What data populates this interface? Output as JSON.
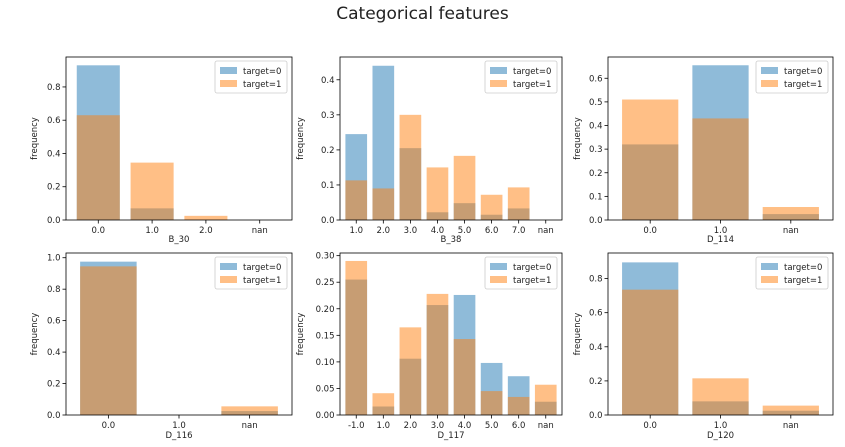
{
  "title": "Categorical features",
  "colors": {
    "target0": "#1f77b4",
    "target1": "#ff7f0e",
    "overlap": "#a87a5c"
  },
  "chart_data": [
    {
      "type": "bar",
      "xlabel": "B_30",
      "ylabel": "frequency",
      "categories": [
        "0.0",
        "1.0",
        "2.0",
        "nan"
      ],
      "ylim": [
        0,
        0.98
      ],
      "yticks": [
        0.0,
        0.2,
        0.4,
        0.6,
        0.8
      ],
      "legend": "upper right",
      "series": [
        {
          "name": "target=0",
          "values": [
            0.93,
            0.07,
            0.0,
            0.0
          ]
        },
        {
          "name": "target=1",
          "values": [
            0.63,
            0.345,
            0.025,
            0.0
          ]
        }
      ]
    },
    {
      "type": "bar",
      "xlabel": "B_38",
      "ylabel": "frequency",
      "categories": [
        "1.0",
        "2.0",
        "3.0",
        "4.0",
        "5.0",
        "6.0",
        "7.0",
        "nan"
      ],
      "ylim": [
        0,
        0.465
      ],
      "yticks": [
        0.0,
        0.1,
        0.2,
        0.3,
        0.4
      ],
      "legend": "upper right",
      "series": [
        {
          "name": "target=0",
          "values": [
            0.245,
            0.44,
            0.205,
            0.022,
            0.048,
            0.015,
            0.033,
            0.0
          ]
        },
        {
          "name": "target=1",
          "values": [
            0.113,
            0.09,
            0.3,
            0.15,
            0.183,
            0.072,
            0.093,
            0.0
          ]
        }
      ]
    },
    {
      "type": "bar",
      "xlabel": "D_114",
      "ylabel": "frequency",
      "categories": [
        "0.0",
        "1.0",
        "nan"
      ],
      "ylim": [
        0,
        0.69
      ],
      "yticks": [
        0.0,
        0.1,
        0.2,
        0.3,
        0.4,
        0.5,
        0.6
      ],
      "legend": "upper right",
      "series": [
        {
          "name": "target=0",
          "values": [
            0.32,
            0.655,
            0.025
          ]
        },
        {
          "name": "target=1",
          "values": [
            0.51,
            0.43,
            0.055
          ]
        }
      ]
    },
    {
      "type": "bar",
      "xlabel": "D_116",
      "ylabel": "frequency",
      "categories": [
        "0.0",
        "1.0",
        "nan"
      ],
      "ylim": [
        0,
        1.03
      ],
      "yticks": [
        0.0,
        0.2,
        0.4,
        0.6,
        0.8,
        1.0
      ],
      "legend": "upper right",
      "series": [
        {
          "name": "target=0",
          "values": [
            0.975,
            0.0,
            0.025
          ]
        },
        {
          "name": "target=1",
          "values": [
            0.945,
            0.0,
            0.055
          ]
        }
      ]
    },
    {
      "type": "bar",
      "xlabel": "D_117",
      "ylabel": "frequency",
      "categories": [
        "-1.0",
        "1.0",
        "2.0",
        "3.0",
        "4.0",
        "5.0",
        "6.0",
        "nan"
      ],
      "ylim": [
        0,
        0.305
      ],
      "yticks": [
        0.0,
        0.05,
        0.1,
        0.15,
        0.2,
        0.25,
        0.3
      ],
      "ytick_labels": [
        "0.00",
        "0.05",
        "0.10",
        "0.15",
        "0.20",
        "0.25",
        "0.30"
      ],
      "legend": "upper right",
      "series": [
        {
          "name": "target=0",
          "values": [
            0.255,
            0.016,
            0.106,
            0.207,
            0.226,
            0.098,
            0.073,
            0.025
          ]
        },
        {
          "name": "target=1",
          "values": [
            0.29,
            0.041,
            0.165,
            0.228,
            0.143,
            0.045,
            0.034,
            0.057
          ]
        }
      ]
    },
    {
      "type": "bar",
      "xlabel": "D_120",
      "ylabel": "frequency",
      "categories": [
        "0.0",
        "1.0",
        "nan"
      ],
      "ylim": [
        0,
        0.95
      ],
      "yticks": [
        0.0,
        0.2,
        0.4,
        0.6,
        0.8
      ],
      "legend": "upper right",
      "series": [
        {
          "name": "target=0",
          "values": [
            0.895,
            0.08,
            0.025
          ]
        },
        {
          "name": "target=1",
          "values": [
            0.735,
            0.215,
            0.055
          ]
        }
      ]
    }
  ]
}
